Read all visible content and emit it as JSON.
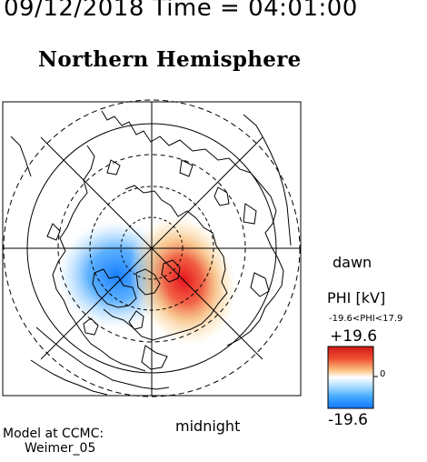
{
  "header": {
    "time_title": "09/12/2018 Time = 04:01:00",
    "hemisphere_title": "Northern Hemisphere"
  },
  "plot": {
    "dawn_label": "dawn",
    "midnight_label": "midnight",
    "coastline_color": "#000000",
    "grid_color": "#000000"
  },
  "colorbar": {
    "title": "PHI [kV]",
    "range_text": "-19.6<PHI<17.9",
    "max_label": "+19.6",
    "zero_label": "0",
    "min_label": "-19.6",
    "colors": [
      "#1a8cff",
      "#ffffff",
      "#e8141e"
    ]
  },
  "potential": {
    "min_kv": -19.6,
    "max_kv": 17.9,
    "negative_cell_color": "#2a90ff",
    "positive_cell_color": "#e8141e"
  },
  "footer": {
    "model_line1": "Model at CCMC:",
    "model_line2": "Weimer_05"
  }
}
